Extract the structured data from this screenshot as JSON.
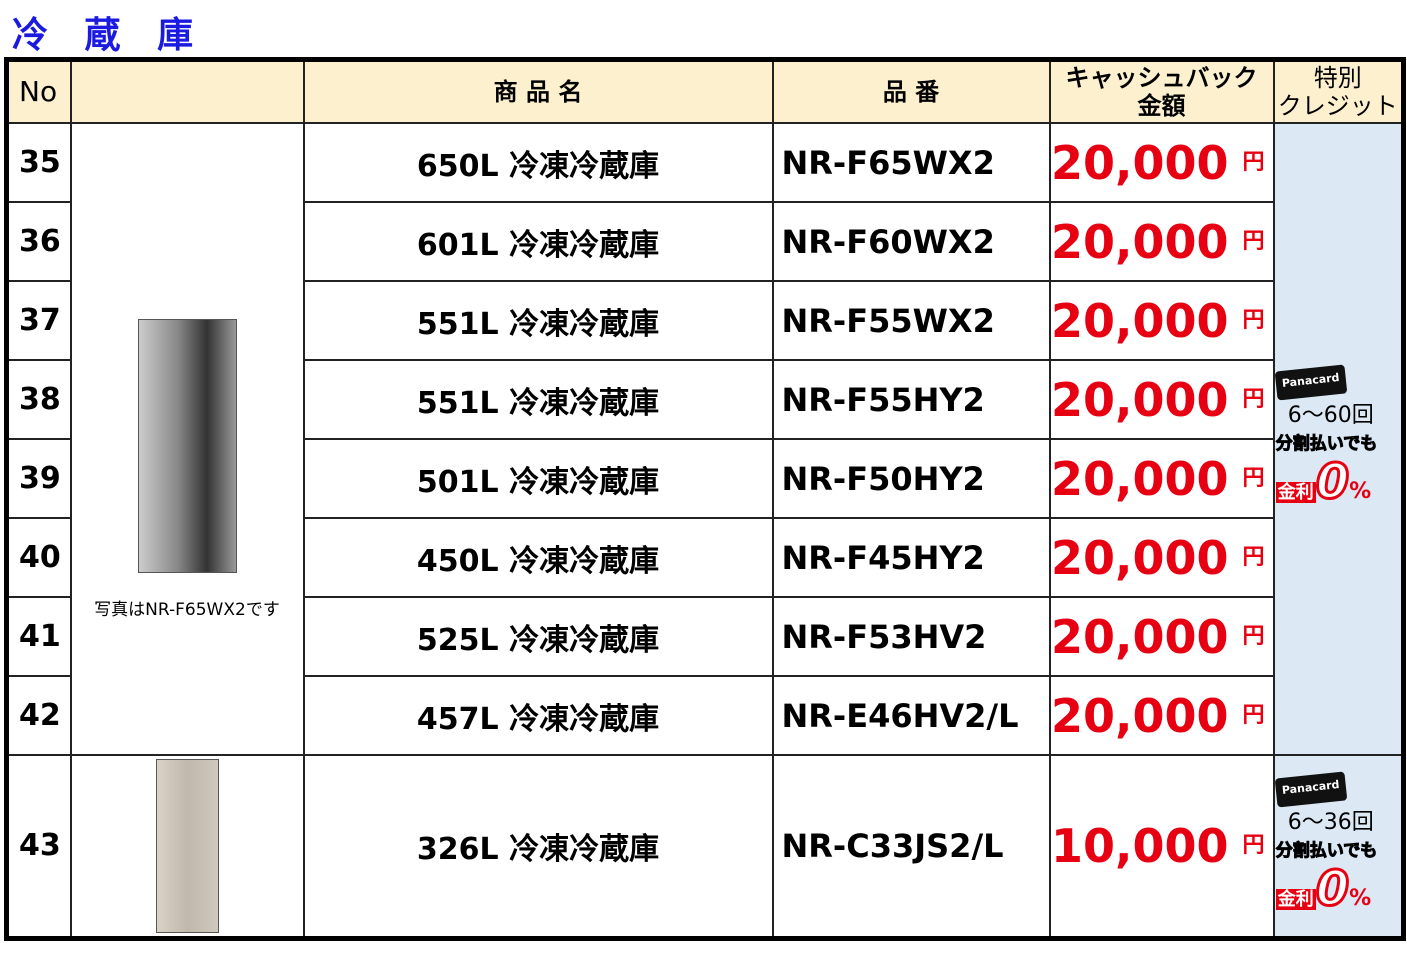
{
  "title": "冷 蔵 庫",
  "header": {
    "no": "No",
    "image": "",
    "name": "商 品 名",
    "model": "品 番",
    "cashback_line1": "キャッシュバック",
    "cashback_line2": "金額",
    "credit_line1": "特別",
    "credit_line2": "クレジット"
  },
  "photo_caption": "写真はNR-F65WX2です",
  "currency": "円",
  "rows": [
    {
      "no": "35",
      "name": "650L 冷凍冷蔵庫",
      "model": "NR-F65WX2",
      "amount": "20,000"
    },
    {
      "no": "36",
      "name": "601L 冷凍冷蔵庫",
      "model": "NR-F60WX2",
      "amount": "20,000"
    },
    {
      "no": "37",
      "name": "551L 冷凍冷蔵庫",
      "model": "NR-F55WX2",
      "amount": "20,000"
    },
    {
      "no": "38",
      "name": "551L 冷凍冷蔵庫",
      "model": "NR-F55HY2",
      "amount": "20,000"
    },
    {
      "no": "39",
      "name": "501L 冷凍冷蔵庫",
      "model": "NR-F50HY2",
      "amount": "20,000"
    },
    {
      "no": "40",
      "name": "450L 冷凍冷蔵庫",
      "model": "NR-F45HY2",
      "amount": "20,000"
    },
    {
      "no": "41",
      "name": "525L 冷凍冷蔵庫",
      "model": "NR-F53HV2",
      "amount": "20,000"
    },
    {
      "no": "42",
      "name": "457L 冷凍冷蔵庫",
      "model": "NR-E46HV2/L",
      "amount": "20,000"
    },
    {
      "no": "43",
      "name": "326L 冷凍冷蔵庫",
      "model": "NR-C33JS2/L",
      "amount": "10,000"
    }
  ],
  "credit_groups": [
    {
      "card": "Panacard",
      "installments": "6～60回",
      "text1": "分割払いでも",
      "text2": "金利",
      "zero": "0",
      "pct": "%"
    },
    {
      "card": "Panacard",
      "installments": "6～36回",
      "text1": "分割払いでも",
      "text2": "金利",
      "zero": "0",
      "pct": "%"
    }
  ],
  "colors": {
    "title": "#1a1ae0",
    "header_bg": "#fdf0cf",
    "amount": "#e60012",
    "credit_bg": "#dce9f5"
  }
}
